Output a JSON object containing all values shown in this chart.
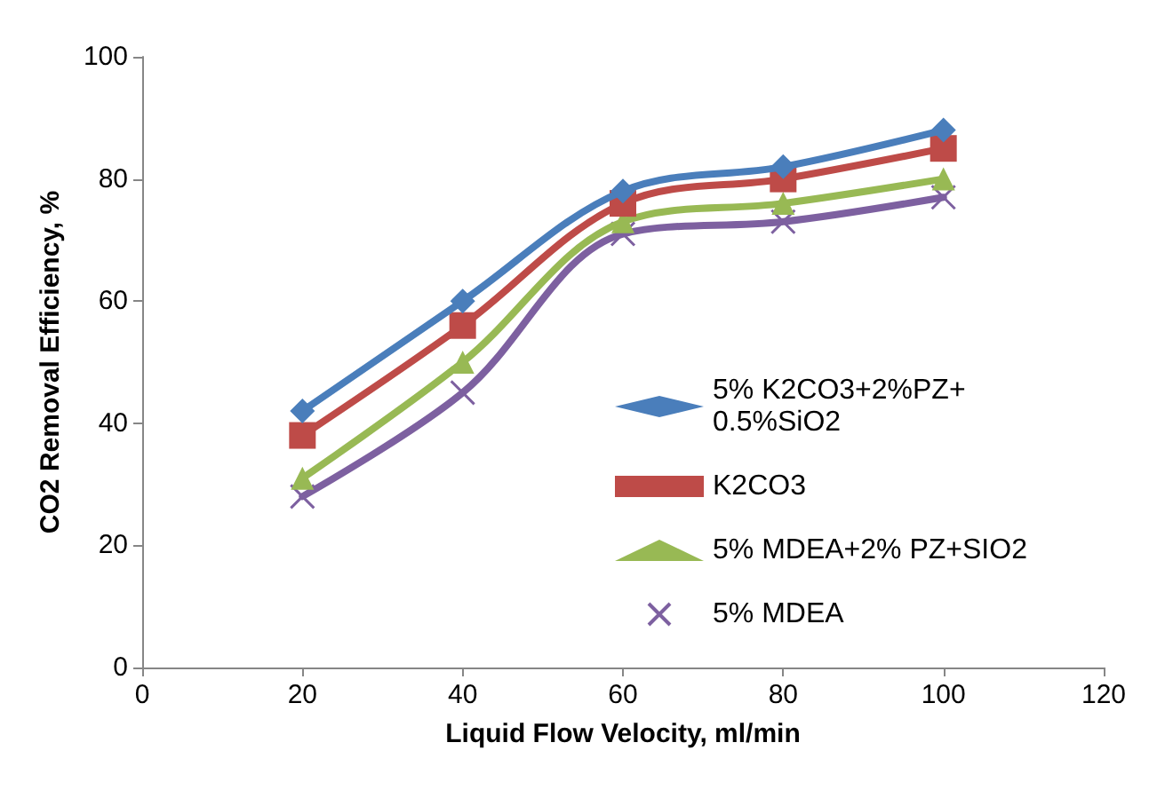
{
  "chart_data": {
    "type": "line",
    "xlabel": "Liquid Flow Velocity, ml/min",
    "ylabel": "CO2 Removal Efficiency, %",
    "x": [
      20,
      40,
      60,
      80,
      100
    ],
    "xlim": [
      0,
      120
    ],
    "xticks": [
      0,
      20,
      40,
      60,
      80,
      100,
      120
    ],
    "ylim": [
      0,
      100
    ],
    "yticks": [
      0,
      20,
      40,
      60,
      80,
      100
    ],
    "grid": false,
    "legend": "right",
    "series": [
      {
        "name": "5% K2CO3+2%PZ+ 0.5%SiO2",
        "color": "#4a7ebb",
        "marker": "diamond",
        "values": [
          42,
          60,
          78,
          82,
          88
        ]
      },
      {
        "name": "K2CO3",
        "color": "#be4b48",
        "marker": "square",
        "values": [
          38,
          56,
          76,
          80,
          85
        ]
      },
      {
        "name": "5% MDEA+2% PZ+SIO2",
        "color": "#98b954",
        "marker": "triangle",
        "values": [
          31,
          50,
          73,
          76,
          80
        ]
      },
      {
        "name": "5% MDEA",
        "color": "#7d60a0",
        "marker": "cross",
        "values": [
          28,
          45,
          71,
          73,
          77
        ]
      }
    ]
  }
}
